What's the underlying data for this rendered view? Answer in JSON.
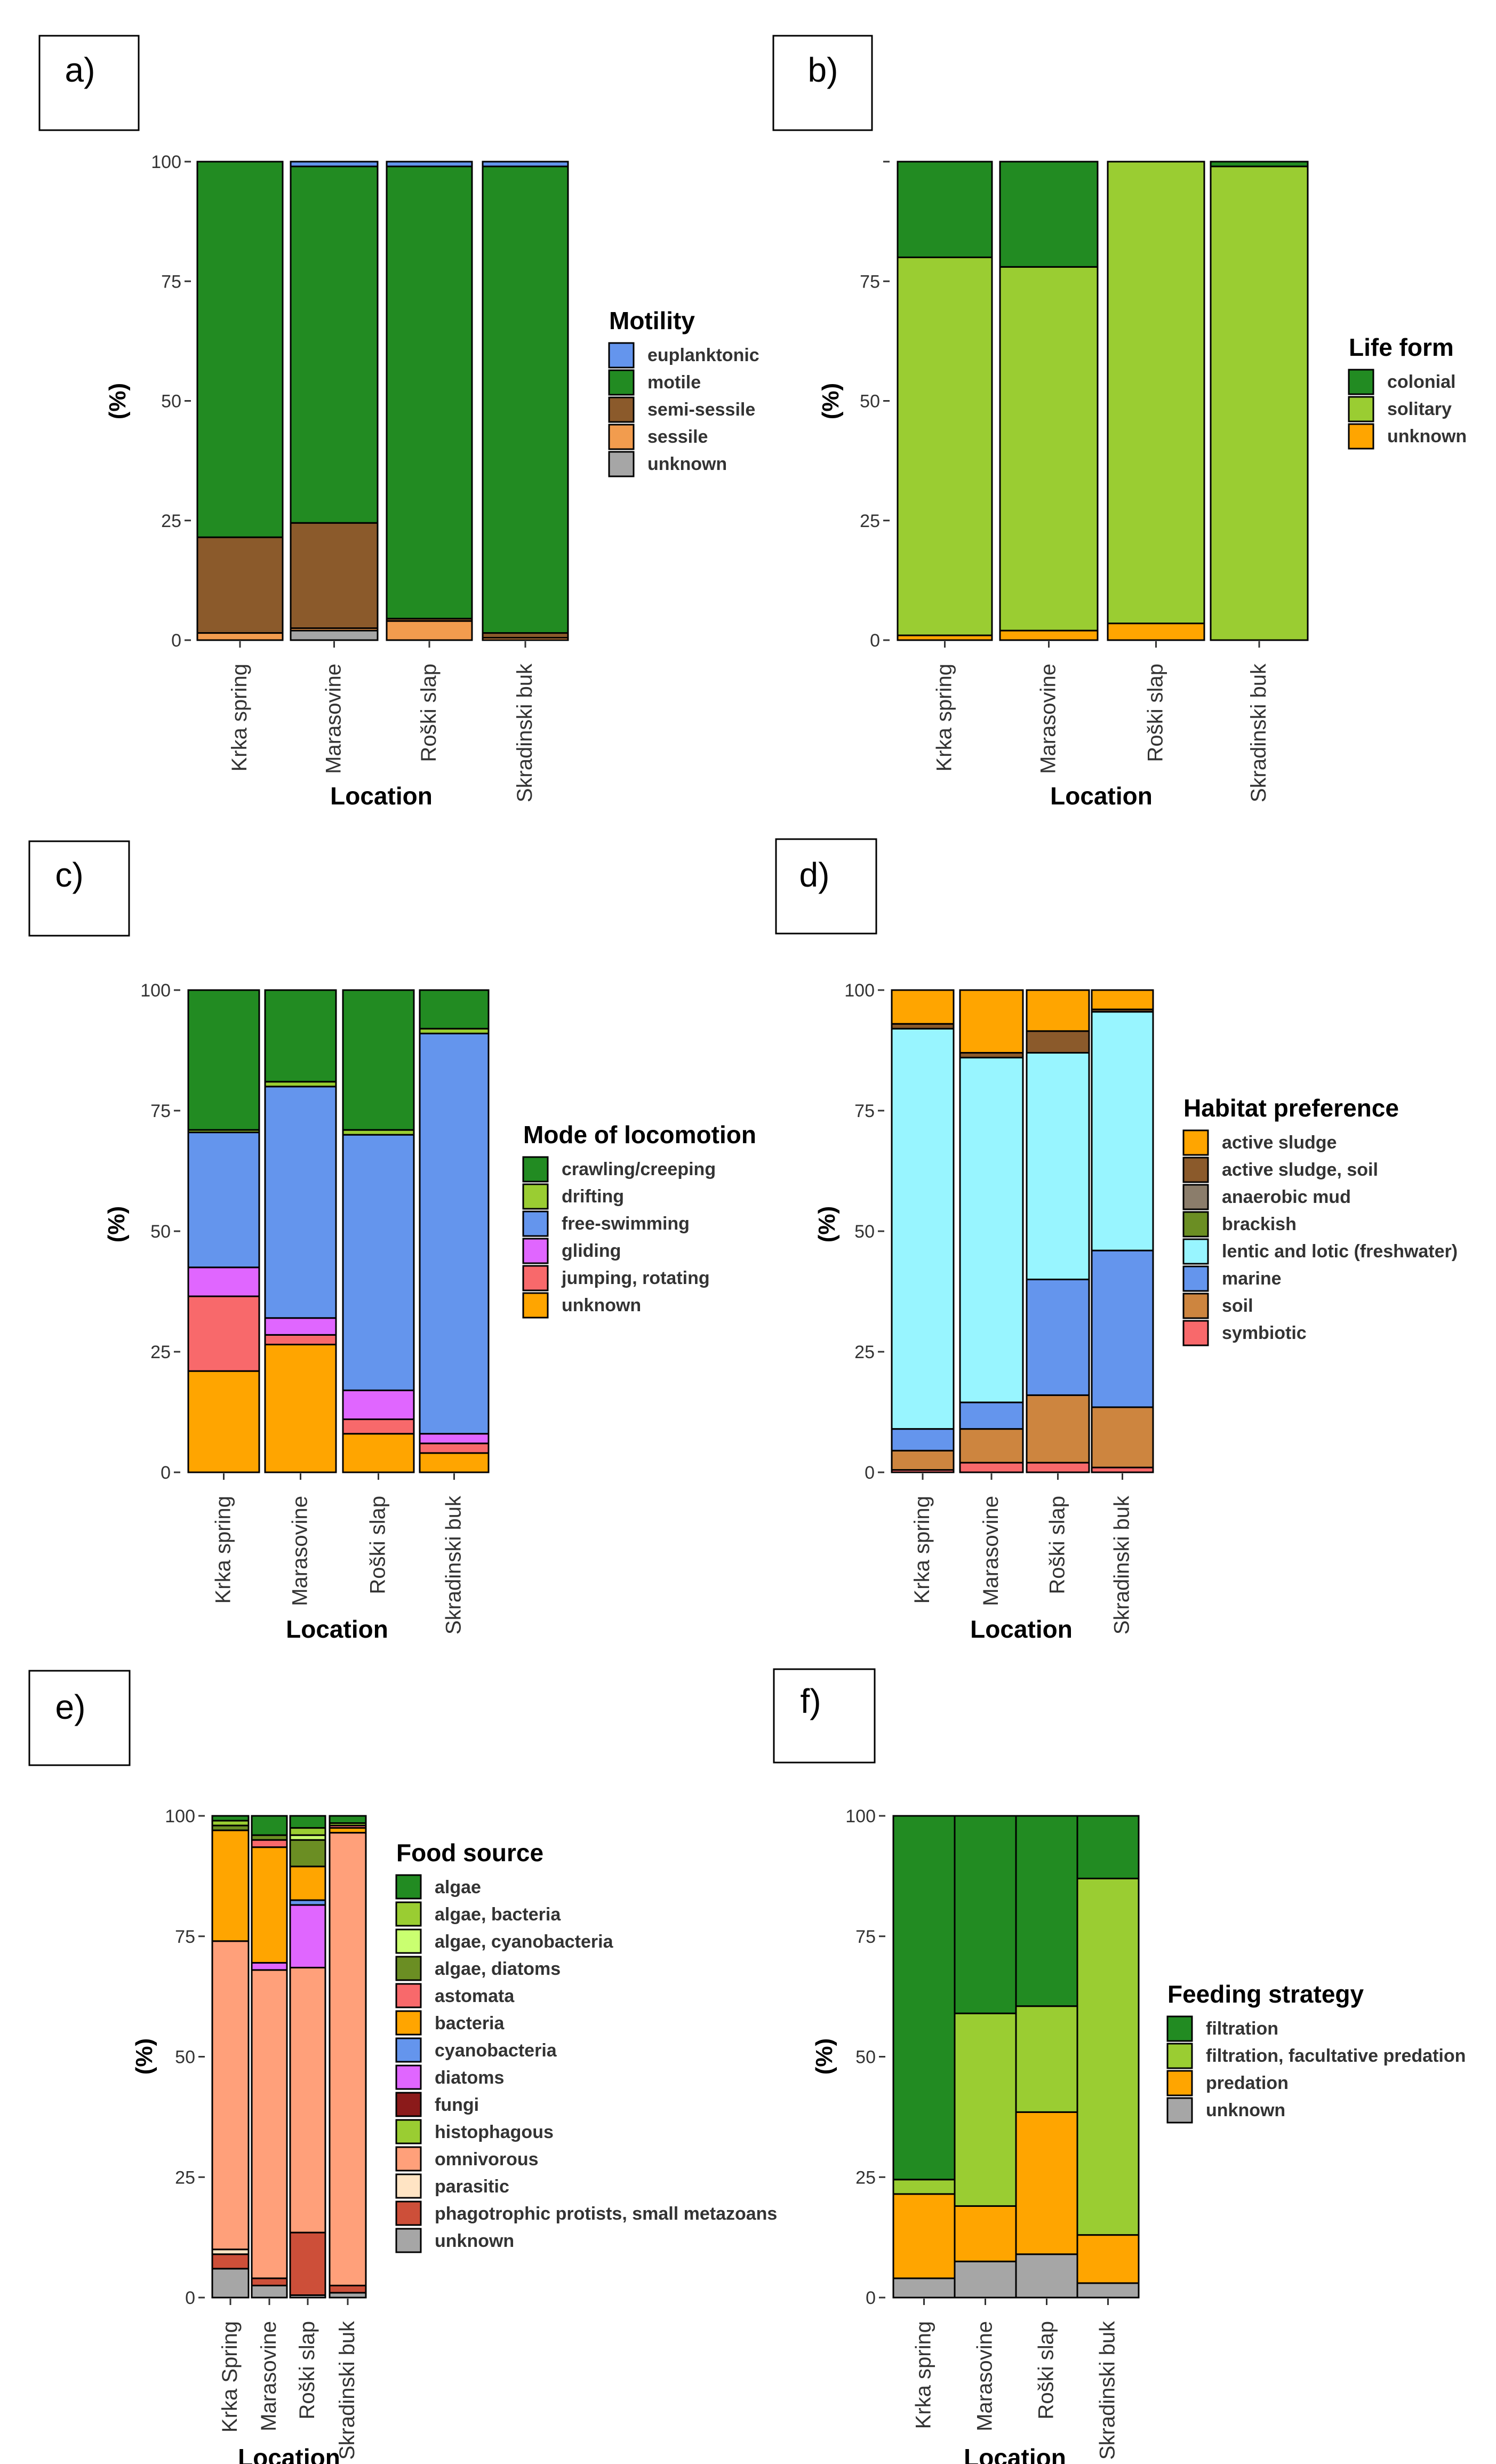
{
  "figure": {
    "y_axis_label": "(%)",
    "x_axis_label": "Location",
    "y_ticks": [
      "0",
      "25",
      "50",
      "75",
      "100"
    ]
  },
  "chart_data": [
    {
      "panel_label": "a)",
      "type": "bar",
      "stacked": true,
      "title": "",
      "xlabel": "Location",
      "ylabel": "(%)",
      "ylim": [
        0,
        100
      ],
      "y_ticks": [
        "0",
        "25",
        "50",
        "75",
        "100"
      ],
      "categories": [
        "Krka spring",
        "Marasovine",
        "Roški slap",
        "Skradinski buk"
      ],
      "legend_title": "Motility",
      "series": [
        {
          "name": "unknown",
          "color": "#a6a6a6",
          "values": [
            0,
            2,
            0,
            0
          ]
        },
        {
          "name": "sessile",
          "color": "#f29c4e",
          "values": [
            1.5,
            0.5,
            4,
            0.5
          ]
        },
        {
          "name": "semi-sessile",
          "color": "#8b5a2b",
          "values": [
            20,
            22,
            0.5,
            1
          ]
        },
        {
          "name": "motile",
          "color": "#228b22",
          "values": [
            78.5,
            74.5,
            94.5,
            97.5
          ]
        },
        {
          "name": "euplanktonic",
          "color": "#6495ed",
          "values": [
            0,
            1,
            1,
            1
          ]
        }
      ],
      "legend_order": [
        "euplanktonic",
        "motile",
        "semi-sessile",
        "sessile",
        "unknown"
      ]
    },
    {
      "panel_label": "b)",
      "type": "bar",
      "stacked": true,
      "title": "",
      "xlabel": "Location",
      "ylabel": "(%)",
      "ylim": [
        0,
        100
      ],
      "y_ticks": [
        "0",
        "25",
        "50",
        "75",
        ""
      ],
      "categories": [
        "Krka spring",
        "Marasovine",
        "Roški slap",
        "Skradinski buk"
      ],
      "legend_title": "Life form",
      "series": [
        {
          "name": "unknown",
          "color": "#ffa500",
          "values": [
            1,
            2,
            3.5,
            0
          ]
        },
        {
          "name": "solitary",
          "color": "#9acd32",
          "values": [
            79,
            76,
            96.5,
            99
          ]
        },
        {
          "name": "colonial",
          "color": "#228b22",
          "values": [
            20,
            22,
            0,
            1
          ]
        }
      ],
      "legend_order": [
        "colonial",
        "solitary",
        "unknown"
      ]
    },
    {
      "panel_label": "c)",
      "type": "bar",
      "stacked": true,
      "title": "",
      "xlabel": "Location",
      "ylabel": "(%)",
      "ylim": [
        0,
        100
      ],
      "y_ticks": [
        "0",
        "25",
        "50",
        "75",
        "100"
      ],
      "categories": [
        "Krka spring",
        "Marasovine",
        "Roški slap",
        "Skradinski buk"
      ],
      "legend_title": "Mode of locomotion",
      "series": [
        {
          "name": "unknown",
          "color": "#ffa500",
          "values": [
            21,
            26.5,
            8,
            4
          ]
        },
        {
          "name": "jumping, rotating",
          "color": "#f8696b",
          "values": [
            15.5,
            2,
            3,
            2
          ]
        },
        {
          "name": "gliding",
          "color": "#e066ff",
          "values": [
            6,
            3.5,
            6,
            2
          ]
        },
        {
          "name": "free-swimming",
          "color": "#6495ed",
          "values": [
            28,
            48,
            53,
            83
          ]
        },
        {
          "name": "drifting",
          "color": "#9acd32",
          "values": [
            0.5,
            1,
            1,
            1
          ]
        },
        {
          "name": "crawling/creeping",
          "color": "#228b22",
          "values": [
            29,
            19,
            29,
            8
          ]
        }
      ],
      "legend_order": [
        "crawling/creeping",
        "drifting",
        "free-swimming",
        "gliding",
        "jumping, rotating",
        "unknown"
      ]
    },
    {
      "panel_label": "d)",
      "type": "bar",
      "stacked": true,
      "title": "",
      "xlabel": "Location",
      "ylabel": "(%)",
      "ylim": [
        0,
        100
      ],
      "y_ticks": [
        "0",
        "25",
        "50",
        "75",
        "100"
      ],
      "categories": [
        "Krka spring",
        "Marasovine",
        "Roški slap",
        "Skradinski buk"
      ],
      "legend_title": "Habitat preference",
      "series": [
        {
          "name": "symbiotic",
          "color": "#f8696b",
          "values": [
            0.5,
            2,
            2,
            1
          ]
        },
        {
          "name": "soil",
          "color": "#cd853f",
          "values": [
            4,
            7,
            14,
            12.5
          ]
        },
        {
          "name": "marine",
          "color": "#6495ed",
          "values": [
            4.5,
            5.5,
            24,
            32.5
          ]
        },
        {
          "name": "lentic and lotic (freshwater)",
          "color": "#98f5ff",
          "values": [
            83,
            71.5,
            47,
            49.5
          ]
        },
        {
          "name": "brackish",
          "color": "#6b8e23",
          "values": [
            0,
            0,
            0,
            0
          ]
        },
        {
          "name": "anaerobic mud",
          "color": "#8b7d6b",
          "values": [
            0,
            0,
            0,
            0
          ]
        },
        {
          "name": "active sludge, soil",
          "color": "#8b5a2b",
          "values": [
            1,
            1,
            4.5,
            0.5
          ]
        },
        {
          "name": "active sludge",
          "color": "#ffa500",
          "values": [
            7,
            13,
            8.5,
            4
          ]
        }
      ],
      "legend_order": [
        "active sludge",
        "active sludge, soil",
        "anaerobic mud",
        "brackish",
        "lentic and lotic (freshwater)",
        "marine",
        "soil",
        "symbiotic"
      ]
    },
    {
      "panel_label": "e)",
      "type": "bar",
      "stacked": true,
      "title": "",
      "xlabel": "Location",
      "ylabel": "(%)",
      "ylim": [
        0,
        100
      ],
      "y_ticks": [
        "0",
        "25",
        "50",
        "75",
        "100"
      ],
      "categories": [
        "Krka Spring",
        "Marasovine",
        "Roški slap",
        "Skradinski buk"
      ],
      "legend_title": "Food source",
      "series": [
        {
          "name": "unknown",
          "color": "#a6a6a6",
          "values": [
            6,
            2.5,
            0.5,
            1
          ]
        },
        {
          "name": "phagotrophic protists, small metazoans",
          "color": "#cd4f39",
          "values": [
            3,
            1.5,
            13,
            1.5
          ]
        },
        {
          "name": "parasitic",
          "color": "#ffe4c4",
          "values": [
            1,
            0,
            0,
            0
          ]
        },
        {
          "name": "omnivorous",
          "color": "#ffa07a",
          "values": [
            64,
            64,
            55,
            94
          ]
        },
        {
          "name": "histophagous",
          "color": "#9acd32",
          "values": [
            0,
            0,
            0,
            0
          ]
        },
        {
          "name": "fungi",
          "color": "#8b1a1a",
          "values": [
            0,
            0,
            0,
            0
          ]
        },
        {
          "name": "diatoms",
          "color": "#e066ff",
          "values": [
            0,
            1.5,
            13,
            0
          ]
        },
        {
          "name": "cyanobacteria",
          "color": "#6495ed",
          "values": [
            0,
            0,
            1,
            0
          ]
        },
        {
          "name": "bacteria",
          "color": "#ffa500",
          "values": [
            23,
            24,
            7,
            1
          ]
        },
        {
          "name": "astomata",
          "color": "#f8696b",
          "values": [
            0,
            1.5,
            0,
            0.5
          ]
        },
        {
          "name": "algae, diatoms",
          "color": "#6b8e23",
          "values": [
            1,
            1,
            5.5,
            0
          ]
        },
        {
          "name": "algae, cyanobacteria",
          "color": "#caff70",
          "values": [
            0,
            0,
            1,
            0
          ]
        },
        {
          "name": "algae, bacteria",
          "color": "#9acd32",
          "values": [
            1,
            0,
            1.5,
            0.5
          ]
        },
        {
          "name": "algae",
          "color": "#228b22",
          "values": [
            1,
            4,
            2.5,
            1.5
          ]
        }
      ],
      "legend_order": [
        "algae",
        "algae, bacteria",
        "algae, cyanobacteria",
        "algae, diatoms",
        "astomata",
        "bacteria",
        "cyanobacteria",
        "diatoms",
        "fungi",
        "histophagous",
        "omnivorous",
        "parasitic",
        "phagotrophic protists, small metazoans",
        "unknown"
      ]
    },
    {
      "panel_label": "f)",
      "type": "bar",
      "stacked": true,
      "title": "",
      "xlabel": "Location",
      "ylabel": "(%)",
      "ylim": [
        0,
        100
      ],
      "y_ticks": [
        "0",
        "25",
        "50",
        "75",
        "100"
      ],
      "categories": [
        "Krka spring",
        "Marasovine",
        "Roški slap",
        "Skradinski buk"
      ],
      "legend_title": "Feeding strategy",
      "series": [
        {
          "name": "unknown",
          "color": "#a6a6a6",
          "values": [
            4,
            7.5,
            9,
            3
          ]
        },
        {
          "name": "predation",
          "color": "#ffa500",
          "values": [
            17.5,
            11.5,
            29.5,
            10
          ]
        },
        {
          "name": "filtration, facultative predation",
          "color": "#9acd32",
          "values": [
            3,
            40,
            22,
            74
          ]
        },
        {
          "name": "filtration",
          "color": "#228b22",
          "values": [
            75.5,
            41,
            39.5,
            13
          ]
        }
      ],
      "legend_order": [
        "filtration",
        "filtration, facultative predation",
        "predation",
        "unknown"
      ]
    }
  ]
}
